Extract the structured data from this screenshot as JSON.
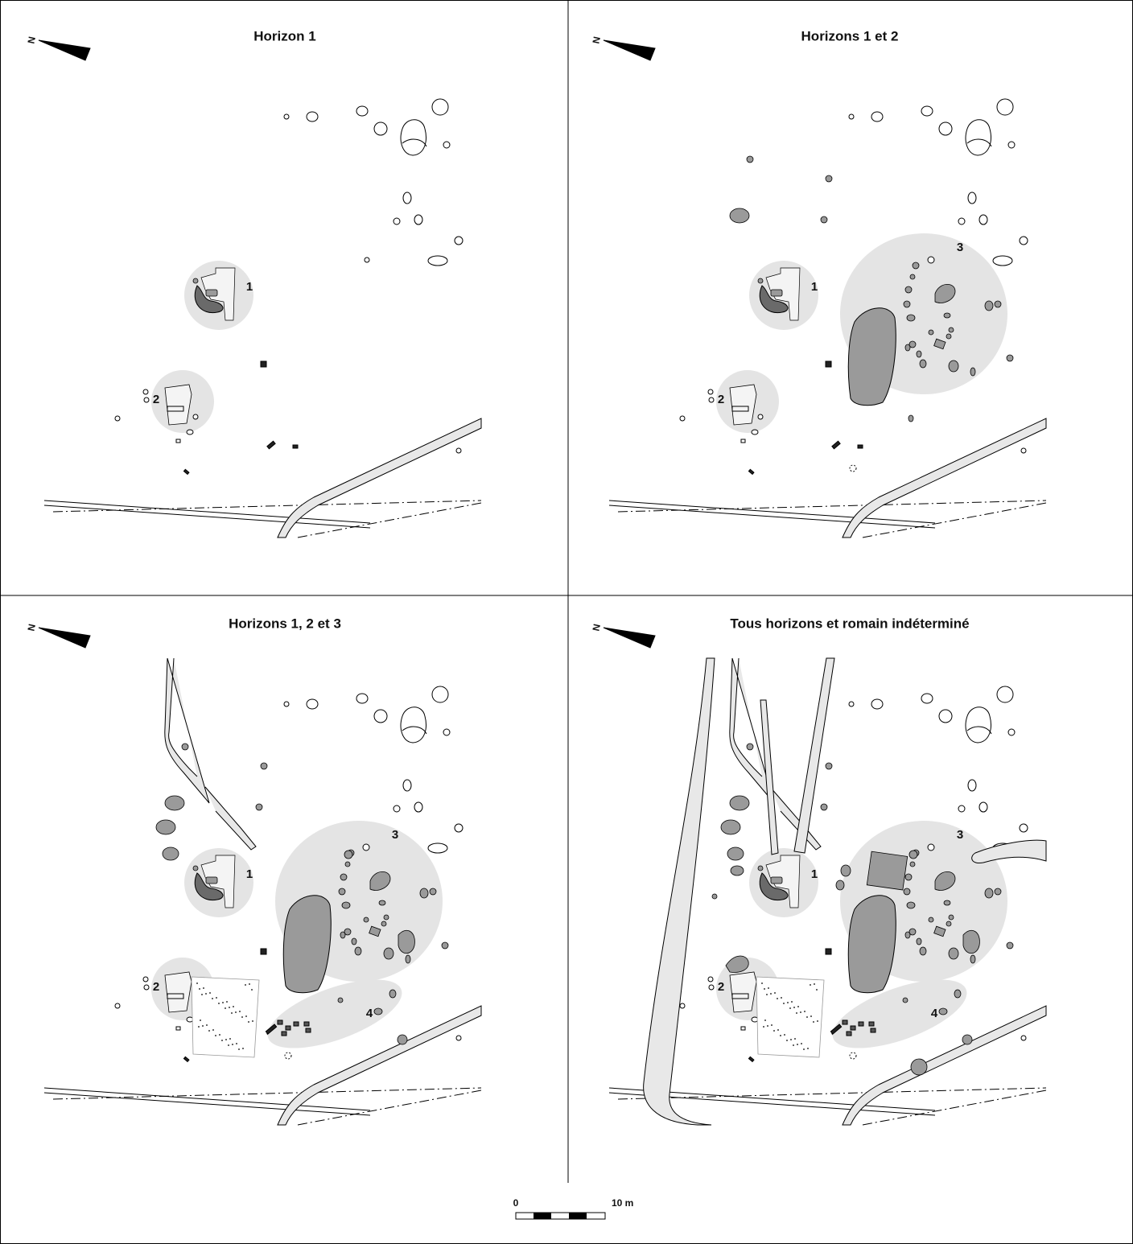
{
  "north_label": "N",
  "panels": [
    {
      "title": "Horizon 1",
      "zones": [
        "1",
        "2"
      ]
    },
    {
      "title": "Horizons 1 et 2",
      "zones": [
        "1",
        "2",
        "3"
      ]
    },
    {
      "title": "Horizons 1, 2 et 3",
      "zones": [
        "1",
        "2",
        "3",
        "4"
      ]
    },
    {
      "title": "Tous horizons et romain indéterminé",
      "zones": [
        "1",
        "2",
        "3",
        "4"
      ]
    }
  ],
  "scale_bar": {
    "start": "0",
    "end": "10 m"
  }
}
